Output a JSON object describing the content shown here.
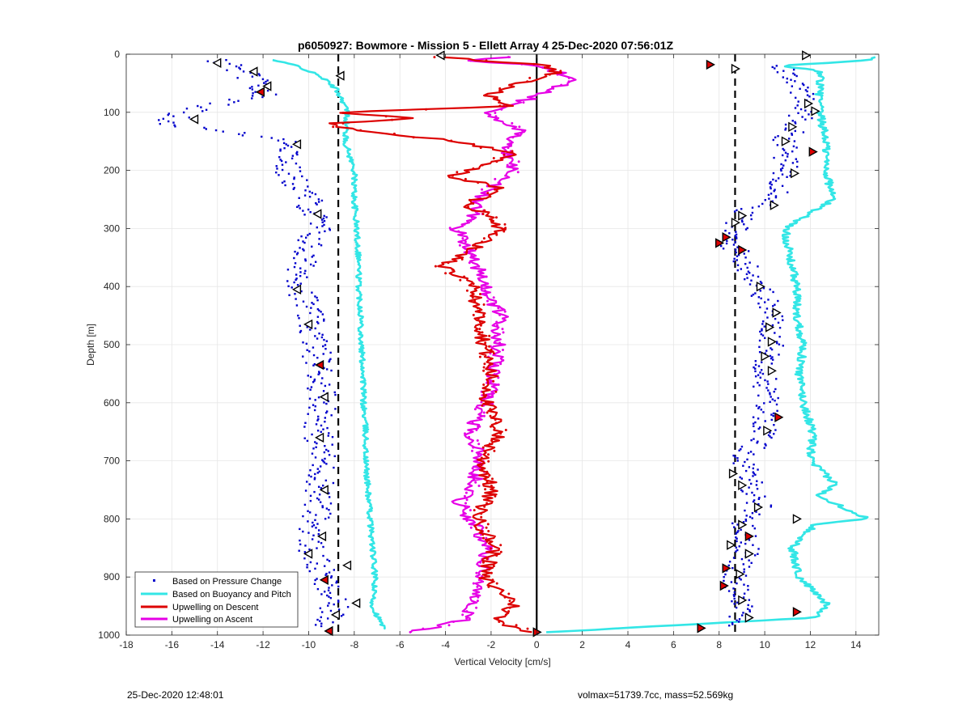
{
  "figure": {
    "footer_left": "25-Dec-2020 12:48:01",
    "footer_right": "volmax=51739.7cc, mass=52.569kg"
  },
  "colors": {
    "pressure": "#0000cc",
    "buoyancy": "#33e6e6",
    "descent": "#dd0000",
    "ascent": "#e600e6",
    "reference": "#000000",
    "grid": "#e6e6e6"
  },
  "chart_data": {
    "type": "line",
    "title": "p6050927: Bowmore - Mission 5 - Ellett Array 4 25-Dec-2020 07:56:01Z",
    "xlabel": "Vertical Velocity [cm/s]",
    "ylabel": "Depth [m]",
    "xlim": [
      -18,
      15
    ],
    "ylim": [
      1000,
      0
    ],
    "y_reversed": true,
    "grid": true,
    "xticks": [
      -18,
      -16,
      -14,
      -12,
      -10,
      -8,
      -6,
      -4,
      -2,
      0,
      2,
      4,
      6,
      8,
      10,
      12,
      14
    ],
    "yticks": [
      0,
      100,
      200,
      300,
      400,
      500,
      600,
      700,
      800,
      900,
      1000
    ],
    "reference_lines": [
      {
        "x": -8.7,
        "style": "dashed"
      },
      {
        "x": 8.7,
        "style": "dashed"
      },
      {
        "x": 0,
        "style": "solid"
      }
    ],
    "legend": {
      "location": "bottom-left",
      "entries": [
        "Based on Pressure Change",
        "Based on Buoyancy and Pitch",
        "Upwelling on Descent",
        "Upwelling on Ascent"
      ]
    },
    "series": [
      {
        "name": "Based on Buoyancy and Pitch",
        "role": "buoyancy-descent",
        "depth": [
          10,
          20,
          40,
          60,
          80,
          100,
          150,
          200,
          250,
          300,
          350,
          400,
          450,
          500,
          550,
          600,
          650,
          700,
          750,
          800,
          850,
          900,
          950,
          990
        ],
        "velocity": [
          -11.6,
          -10.5,
          -9.4,
          -8.8,
          -8.5,
          -8.3,
          -8.4,
          -8.0,
          -8.0,
          -7.9,
          -7.8,
          -7.8,
          -7.7,
          -7.7,
          -7.6,
          -7.6,
          -7.5,
          -7.5,
          -7.4,
          -7.3,
          -7.2,
          -7.1,
          -7.2,
          -6.7
        ]
      },
      {
        "name": "Based on Buoyancy and Pitch",
        "role": "buoyancy-ascent",
        "depth": [
          995,
          970,
          950,
          900,
          850,
          810,
          800,
          760,
          740,
          700,
          650,
          600,
          550,
          500,
          450,
          400,
          350,
          300,
          250,
          200,
          150,
          100,
          60,
          30,
          20,
          10,
          5
        ],
        "velocity": [
          0.5,
          12.2,
          12.8,
          11.5,
          11.2,
          12.2,
          14.5,
          12.4,
          13.1,
          12.0,
          12.1,
          11.7,
          11.5,
          11.7,
          11.4,
          11.4,
          11.1,
          10.9,
          13.0,
          12.7,
          12.7,
          12.4,
          12.4,
          12.5,
          10.8,
          14.5,
          14.8
        ]
      },
      {
        "name": "Upwelling on Descent",
        "role": "descent",
        "depth": [
          5,
          20,
          30,
          50,
          70,
          90,
          100,
          110,
          120,
          130,
          150,
          170,
          190,
          210,
          230,
          260,
          280,
          300,
          330,
          365,
          400,
          450,
          500,
          550,
          600,
          650,
          700,
          750,
          800,
          850,
          900,
          945,
          975,
          995
        ],
        "velocity": [
          -4.3,
          0.6,
          0.9,
          -0.7,
          -2.0,
          -1.3,
          -9.0,
          -5.3,
          -9.2,
          -8.1,
          -3.5,
          -1.0,
          -2.2,
          -3.8,
          -1.5,
          -3.1,
          -1.8,
          -1.6,
          -2.6,
          -4.1,
          -2.8,
          -2.5,
          -2.3,
          -2.0,
          -2.2,
          -1.6,
          -2.4,
          -2.0,
          -2.6,
          -1.8,
          -2.4,
          -0.9,
          -1.8,
          -0.2
        ]
      },
      {
        "name": "Upwelling on Ascent",
        "role": "ascent",
        "depth": [
          995,
          975,
          950,
          900,
          850,
          800,
          770,
          750,
          700,
          650,
          600,
          550,
          500,
          450,
          400,
          350,
          300,
          270,
          250,
          200,
          150,
          130,
          100,
          80,
          60,
          40,
          20,
          10,
          5
        ],
        "velocity": [
          -5.6,
          -3.2,
          -2.8,
          -2.4,
          -2.2,
          -2.9,
          -3.4,
          -2.8,
          -2.5,
          -2.9,
          -2.2,
          -1.9,
          -1.7,
          -1.6,
          -2.3,
          -2.7,
          -3.5,
          -2.5,
          -2.6,
          -1.0,
          -1.4,
          -0.7,
          -2.2,
          -0.6,
          0.9,
          1.5,
          0.2,
          -3.1,
          -1.2
        ]
      },
      {
        "name": "Based on Pressure Change",
        "role": "pressure-descent",
        "depth": [
          10,
          40,
          70,
          100,
          120,
          150,
          200,
          250,
          300,
          350,
          400,
          450,
          500,
          550,
          600,
          650,
          700,
          750,
          800,
          850,
          900,
          950,
          985
        ],
        "velocity": [
          -14.0,
          -12.5,
          -12.0,
          -15.5,
          -16.2,
          -10.6,
          -11.0,
          -10.0,
          -9.6,
          -10.3,
          -10.3,
          -10.0,
          -9.7,
          -9.5,
          -9.3,
          -9.6,
          -9.4,
          -9.5,
          -9.7,
          -9.9,
          -9.4,
          -8.9,
          -9.2
        ]
      },
      {
        "name": "Based on Pressure Change",
        "role": "pressure-ascent",
        "depth": [
          985,
          950,
          900,
          850,
          810,
          780,
          740,
          700,
          650,
          600,
          550,
          500,
          450,
          400,
          350,
          320,
          300,
          270,
          250,
          200,
          150,
          100,
          50,
          20
        ],
        "velocity": [
          8.8,
          9.2,
          8.6,
          9.3,
          9.0,
          9.8,
          9.4,
          9.0,
          10.0,
          10.1,
          10.0,
          10.3,
          10.3,
          9.8,
          9.0,
          8.4,
          8.7,
          9.1,
          10.6,
          10.9,
          10.9,
          11.7,
          11.5,
          10.8
        ]
      }
    ],
    "triangle_markers": [
      {
        "x": -14.0,
        "y": 15
      },
      {
        "x": -12.4,
        "y": 30
      },
      {
        "x": -11.8,
        "y": 55
      },
      {
        "x": -12.1,
        "y": 65
      },
      {
        "x": -8.6,
        "y": 37
      },
      {
        "x": -15.0,
        "y": 112
      },
      {
        "x": -10.5,
        "y": 155
      },
      {
        "x": -9.6,
        "y": 275
      },
      {
        "x": -10.5,
        "y": 405
      },
      {
        "x": -10.0,
        "y": 465
      },
      {
        "x": -9.5,
        "y": 535
      },
      {
        "x": -9.3,
        "y": 590
      },
      {
        "x": -9.5,
        "y": 660
      },
      {
        "x": -9.3,
        "y": 750
      },
      {
        "x": -9.4,
        "y": 830
      },
      {
        "x": -10.0,
        "y": 860
      },
      {
        "x": -8.3,
        "y": 880
      },
      {
        "x": -9.3,
        "y": 905
      },
      {
        "x": -7.9,
        "y": 945
      },
      {
        "x": -8.8,
        "y": 965
      },
      {
        "x": -9.1,
        "y": 993
      },
      {
        "x": -4.2,
        "y": 2
      },
      {
        "x": 0.0,
        "y": 995
      },
      {
        "x": 7.2,
        "y": 988
      },
      {
        "x": 7.6,
        "y": 18
      },
      {
        "x": 8.7,
        "y": 25
      },
      {
        "x": 11.8,
        "y": 2
      },
      {
        "x": 11.9,
        "y": 85
      },
      {
        "x": 12.2,
        "y": 98
      },
      {
        "x": 11.2,
        "y": 125
      },
      {
        "x": 10.9,
        "y": 150
      },
      {
        "x": 12.1,
        "y": 168
      },
      {
        "x": 11.3,
        "y": 205
      },
      {
        "x": 10.4,
        "y": 260
      },
      {
        "x": 9.0,
        "y": 278
      },
      {
        "x": 8.7,
        "y": 290
      },
      {
        "x": 8.3,
        "y": 315
      },
      {
        "x": 8.0,
        "y": 325
      },
      {
        "x": 9.0,
        "y": 337
      },
      {
        "x": 9.8,
        "y": 400
      },
      {
        "x": 10.5,
        "y": 445
      },
      {
        "x": 10.2,
        "y": 470
      },
      {
        "x": 10.3,
        "y": 495
      },
      {
        "x": 10.0,
        "y": 520
      },
      {
        "x": 10.3,
        "y": 545
      },
      {
        "x": 10.6,
        "y": 625
      },
      {
        "x": 10.1,
        "y": 648
      },
      {
        "x": 8.6,
        "y": 722
      },
      {
        "x": 9.0,
        "y": 742
      },
      {
        "x": 9.7,
        "y": 780
      },
      {
        "x": 11.4,
        "y": 800
      },
      {
        "x": 9.0,
        "y": 810
      },
      {
        "x": 9.3,
        "y": 830
      },
      {
        "x": 8.5,
        "y": 845
      },
      {
        "x": 9.3,
        "y": 860
      },
      {
        "x": 8.3,
        "y": 885
      },
      {
        "x": 8.9,
        "y": 895
      },
      {
        "x": 8.2,
        "y": 915
      },
      {
        "x": 9.0,
        "y": 940
      },
      {
        "x": 11.4,
        "y": 960
      },
      {
        "x": 9.3,
        "y": 970
      }
    ]
  }
}
